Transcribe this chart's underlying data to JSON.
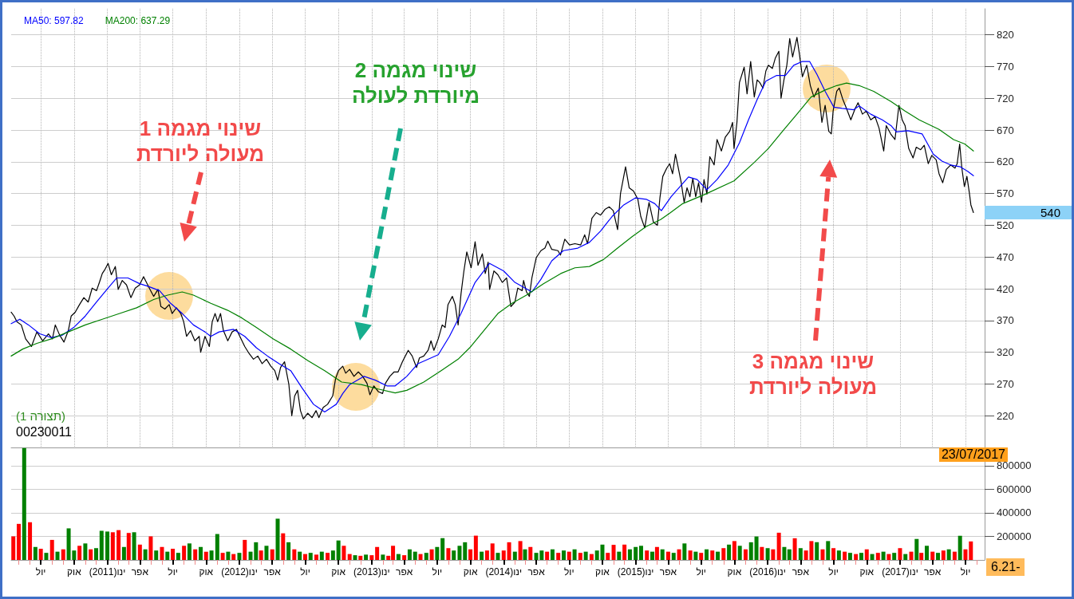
{
  "chart_data": [
    {
      "type": "line",
      "legend": "top left",
      "grid": true,
      "tick_labels": "y",
      "xlim": [
        "2010-04-10",
        "2017-08-23"
      ],
      "ylim": [
        170,
        861
      ],
      "yticks": [
        220,
        270,
        320,
        370,
        420,
        470,
        520,
        570,
        620,
        670,
        720,
        770,
        820
      ],
      "xticks": [
        {
          "value": "2010-07-01",
          "label": null
        },
        {
          "value": "2010-10-01",
          "label": null
        },
        {
          "value": "2011-01-01",
          "label": null
        },
        {
          "value": "2011-04-01",
          "label": null
        },
        {
          "value": "2011-07-01",
          "label": null
        },
        {
          "value": "2011-10-01",
          "label": null
        },
        {
          "value": "2012-01-01",
          "label": null
        },
        {
          "value": "2012-04-01",
          "label": null
        },
        {
          "value": "2012-07-01",
          "label": null
        },
        {
          "value": "2012-10-01",
          "label": null
        },
        {
          "value": "2013-01-01",
          "label": null
        },
        {
          "value": "2013-04-01",
          "label": null
        },
        {
          "value": "2013-07-01",
          "label": null
        },
        {
          "value": "2013-10-01",
          "label": null
        },
        {
          "value": "2014-01-01",
          "label": null
        },
        {
          "value": "2014-04-01",
          "label": null
        },
        {
          "value": "2014-07-01",
          "label": null
        },
        {
          "value": "2014-10-01",
          "label": null
        },
        {
          "value": "2015-01-01",
          "label": null
        },
        {
          "value": "2015-04-01",
          "label": null
        },
        {
          "value": "2015-07-01",
          "label": null
        },
        {
          "value": "2015-10-01",
          "label": null
        },
        {
          "value": "2016-01-01",
          "label": null
        },
        {
          "value": "2016-04-01",
          "label": null
        },
        {
          "value": "2016-07-01",
          "label": null
        },
        {
          "value": "2016-10-01",
          "label": null
        },
        {
          "value": "2017-01-01",
          "label": null
        },
        {
          "value": "2017-04-01",
          "label": null
        },
        {
          "value": "2017-07-01",
          "label": null
        }
      ],
      "series": [
        {
          "color": "#000000",
          "x": [
            "2010-04-10",
            "2010-04-18",
            "2010-04-26",
            "2010-05-08",
            "2010-05-20",
            "2010-06-05",
            "2010-06-20",
            "2010-07-06",
            "2010-07-22",
            "2010-08-02",
            "2010-08-10",
            "2010-08-22",
            "2010-09-03",
            "2010-09-15",
            "2010-09-23",
            "2010-10-04",
            "2010-10-16",
            "2010-10-28",
            "2010-11-09",
            "2010-11-20",
            "2010-12-02",
            "2010-12-10",
            "2010-12-18",
            "2010-12-26",
            "2011-01-03",
            "2011-01-12",
            "2011-01-23",
            "2011-01-31",
            "2011-02-11",
            "2011-02-23",
            "2011-03-07",
            "2011-03-19",
            "2011-03-31",
            "2011-04-11",
            "2011-04-19",
            "2011-04-27",
            "2011-05-09",
            "2011-05-21",
            "2011-05-29",
            "2011-06-09",
            "2011-06-21",
            "2011-06-29",
            "2011-07-11",
            "2011-07-23",
            "2011-07-31",
            "2011-08-08",
            "2011-08-19",
            "2011-08-31",
            "2011-09-12",
            "2011-09-16",
            "2011-09-28",
            "2011-10-10",
            "2011-10-18",
            "2011-10-26",
            "2011-11-02",
            "2011-11-10",
            "2011-11-18",
            "2011-11-30",
            "2011-12-12",
            "2011-12-24",
            "2012-01-04",
            "2012-01-16",
            "2012-01-28",
            "2012-02-09",
            "2012-02-21",
            "2012-03-04",
            "2012-03-16",
            "2012-03-28",
            "2012-04-08",
            "2012-04-16",
            "2012-04-24",
            "2012-05-05",
            "2012-05-17",
            "2012-05-25",
            "2012-06-02",
            "2012-06-10",
            "2012-06-18",
            "2012-06-26",
            "2012-07-08",
            "2012-07-20",
            "2012-07-31",
            "2012-08-08",
            "2012-08-20",
            "2012-09-01",
            "2012-09-15",
            "2012-09-23",
            "2012-10-01",
            "2012-10-13",
            "2012-10-21",
            "2012-11-01",
            "2012-11-13",
            "2012-11-25",
            "2012-12-07",
            "2012-12-19",
            "2012-12-27",
            "2013-01-07",
            "2013-01-19",
            "2013-01-31",
            "2013-02-08",
            "2013-02-20",
            "2013-03-04",
            "2013-03-15",
            "2013-03-27",
            "2013-04-12",
            "2013-04-23",
            "2013-05-05",
            "2013-05-13",
            "2013-05-25",
            "2013-06-06",
            "2013-06-14",
            "2013-06-22",
            "2013-07-04",
            "2013-07-15",
            "2013-07-23",
            "2013-07-31",
            "2013-08-12",
            "2013-08-20",
            "2013-08-28",
            "2013-09-05",
            "2013-09-13",
            "2013-09-21",
            "2013-10-03",
            "2013-10-14",
            "2013-10-22",
            "2013-11-03",
            "2013-11-11",
            "2013-11-19",
            "2013-11-23",
            "2013-12-05",
            "2013-12-16",
            "2013-12-28",
            "2014-01-09",
            "2014-01-21",
            "2014-02-01",
            "2014-02-09",
            "2014-02-21",
            "2014-02-25",
            "2014-03-05",
            "2014-03-13",
            "2014-03-20",
            "2014-04-01",
            "2014-04-14",
            "2014-04-25",
            "2014-05-03",
            "2014-05-14",
            "2014-05-31",
            "2014-06-07",
            "2014-06-19",
            "2014-07-02",
            "2014-07-17",
            "2014-08-02",
            "2014-08-13",
            "2014-08-21",
            "2014-09-02",
            "2014-09-14",
            "2014-09-26",
            "2014-10-08",
            "2014-10-20",
            "2014-10-31",
            "2014-11-12",
            "2014-11-20",
            "2014-12-04",
            "2014-12-14",
            "2014-12-26",
            "2015-01-07",
            "2015-01-15",
            "2015-01-26",
            "2015-02-07",
            "2015-02-19",
            "2015-03-02",
            "2015-03-09",
            "2015-03-17",
            "2015-03-28",
            "2015-04-05",
            "2015-04-13",
            "2015-04-21",
            "2015-04-29",
            "2015-05-07",
            "2015-05-15",
            "2015-05-23",
            "2015-05-31",
            "2015-06-08",
            "2015-06-16",
            "2015-06-24",
            "2015-07-02",
            "2015-07-09",
            "2015-07-17",
            "2015-07-25",
            "2015-08-06",
            "2015-08-14",
            "2015-08-26",
            "2015-09-06",
            "2015-09-18",
            "2015-09-26",
            "2015-09-30",
            "2015-10-08",
            "2015-10-15",
            "2015-10-28",
            "2015-11-05",
            "2015-11-15",
            "2015-11-25",
            "2015-12-03",
            "2015-12-10",
            "2015-12-19",
            "2015-12-27",
            "2016-01-03",
            "2016-01-14",
            "2016-01-22",
            "2016-02-01",
            "2016-02-07",
            "2016-02-15",
            "2016-02-23",
            "2016-03-02",
            "2016-03-10",
            "2016-03-22",
            "2016-03-29",
            "2016-04-06",
            "2016-04-18",
            "2016-04-28",
            "2016-05-08",
            "2016-05-20",
            "2016-05-30",
            "2016-06-08",
            "2016-06-18",
            "2016-06-25",
            "2016-06-30",
            "2016-07-10",
            "2016-07-17",
            "2016-07-27",
            "2016-08-06",
            "2016-08-18",
            "2016-08-30",
            "2016-09-07",
            "2016-09-19",
            "2016-09-30",
            "2016-10-12",
            "2016-10-24",
            "2016-11-04",
            "2016-11-17",
            "2016-11-24",
            "2016-12-06",
            "2016-12-18",
            "2016-12-29",
            "2017-01-07",
            "2017-01-15",
            "2017-01-25",
            "2017-02-06",
            "2017-02-15",
            "2017-02-27",
            "2017-03-09",
            "2017-03-20",
            "2017-03-30",
            "2017-04-11",
            "2017-04-19",
            "2017-04-29",
            "2017-05-09",
            "2017-05-21",
            "2017-06-02",
            "2017-06-08",
            "2017-06-15",
            "2017-06-21",
            "2017-06-28",
            "2017-07-05",
            "2017-07-12",
            "2017-07-16",
            "2017-07-23"
          ],
          "values": [
            383,
            377,
            368,
            363,
            341,
            329,
            352,
            338,
            349,
            341,
            363,
            347,
            336,
            354,
            377,
            383,
            395,
            406,
            399,
            421,
            417,
            430,
            444,
            451,
            460,
            442,
            455,
            419,
            433,
            426,
            406,
            421,
            426,
            439,
            430,
            421,
            408,
            419,
            392,
            388,
            395,
            381,
            390,
            381,
            368,
            345,
            354,
            338,
            345,
            320,
            345,
            329,
            368,
            381,
            368,
            381,
            354,
            338,
            352,
            356,
            343,
            329,
            318,
            309,
            314,
            302,
            309,
            298,
            291,
            276,
            296,
            305,
            269,
            220,
            251,
            260,
            228,
            215,
            224,
            217,
            228,
            217,
            233,
            238,
            251,
            278,
            291,
            298,
            287,
            293,
            282,
            289,
            282,
            271,
            253,
            267,
            258,
            255,
            271,
            282,
            289,
            289,
            305,
            323,
            314,
            296,
            311,
            314,
            323,
            338,
            323,
            341,
            363,
            359,
            395,
            408,
            395,
            363,
            412,
            448,
            478,
            453,
            494,
            457,
            475,
            444,
            462,
            419,
            448,
            442,
            430,
            437,
            392,
            399,
            421,
            417,
            433,
            415,
            408,
            437,
            469,
            480,
            484,
            495,
            482,
            480,
            473,
            498,
            489,
            491,
            489,
            505,
            491,
            531,
            540,
            536,
            545,
            549,
            543,
            513,
            570,
            612,
            579,
            574,
            561,
            534,
            516,
            556,
            525,
            520,
            563,
            597,
            610,
            617,
            601,
            632,
            610,
            587,
            556,
            579,
            565,
            594,
            565,
            587,
            556,
            592,
            569,
            628,
            615,
            655,
            637,
            659,
            668,
            682,
            641,
            682,
            745,
            769,
            727,
            778,
            722,
            749,
            745,
            736,
            763,
            772,
            767,
            783,
            794,
            720,
            749,
            772,
            814,
            785,
            816,
            789,
            754,
            772,
            740,
            722,
            736,
            682,
            709,
            668,
            664,
            700,
            731,
            736,
            718,
            704,
            686,
            704,
            713,
            695,
            700,
            686,
            691,
            673,
            637,
            677,
            664,
            655,
            709,
            686,
            677,
            641,
            626,
            643,
            639,
            646,
            617,
            630,
            623,
            601,
            587,
            608,
            615,
            610,
            617,
            648,
            610,
            581,
            597,
            570,
            552,
            540
          ]
        },
        {
          "name": "MA50: 597.82",
          "color": "#0000ff",
          "x": [
            "2010-04-10",
            "2010-05-04",
            "2010-05-28",
            "2010-06-28",
            "2010-07-30",
            "2010-08-30",
            "2010-09-30",
            "2010-11-01",
            "2010-12-02",
            "2011-01-03",
            "2011-01-27",
            "2011-02-27",
            "2011-03-31",
            "2011-04-23",
            "2011-05-25",
            "2011-06-25",
            "2011-07-27",
            "2011-08-27",
            "2011-09-28",
            "2011-10-14",
            "2011-11-06",
            "2011-12-16",
            "2012-01-16",
            "2012-02-17",
            "2012-03-19",
            "2012-04-20",
            "2012-05-22",
            "2012-06-22",
            "2012-07-24",
            "2012-08-24",
            "2012-09-25",
            "2012-10-13",
            "2012-11-01",
            "2012-12-11",
            "2013-01-11",
            "2013-02-12",
            "2013-03-07",
            "2013-04-08",
            "2013-05-09",
            "2013-07-04",
            "2013-08-04",
            "2013-09-05",
            "2013-10-14",
            "2013-11-23",
            "2014-01-01",
            "2014-02-01",
            "2014-03-20",
            "2014-04-14",
            "2014-05-14",
            "2014-06-15",
            "2014-07-25",
            "2014-08-26",
            "2014-09-26",
            "2014-10-28",
            "2014-11-29",
            "2014-12-31",
            "2015-01-30",
            "2015-02-23",
            "2015-03-13",
            "2015-04-09",
            "2015-05-27",
            "2015-06-20",
            "2015-07-17",
            "2015-08-14",
            "2015-09-14",
            "2015-10-15",
            "2015-11-09",
            "2015-12-03",
            "2015-12-27",
            "2016-01-26",
            "2016-02-19",
            "2016-03-13",
            "2016-04-06",
            "2016-04-26",
            "2016-05-16",
            "2016-06-08",
            "2016-07-02",
            "2016-07-25",
            "2016-08-26",
            "2016-09-10",
            "2016-10-12",
            "2016-11-13",
            "2016-12-07",
            "2016-12-22",
            "2017-01-23",
            "2017-03-03",
            "2017-04-03",
            "2017-04-27",
            "2017-05-21",
            "2017-06-17",
            "2017-07-07",
            "2017-07-23"
          ],
          "values": [
            365,
            372,
            363,
            349,
            343,
            347,
            359,
            377,
            399,
            421,
            437,
            437,
            428,
            424,
            417,
            397,
            381,
            363,
            352,
            345,
            352,
            356,
            345,
            327,
            314,
            302,
            291,
            264,
            238,
            226,
            238,
            255,
            269,
            282,
            276,
            267,
            267,
            282,
            302,
            316,
            345,
            381,
            430,
            460,
            448,
            430,
            415,
            435,
            464,
            480,
            484,
            493,
            511,
            534,
            552,
            563,
            561,
            554,
            543,
            565,
            596,
            592,
            576,
            592,
            615,
            650,
            686,
            718,
            747,
            756,
            756,
            772,
            778,
            778,
            758,
            731,
            706,
            704,
            702,
            708,
            695,
            686,
            677,
            667,
            669,
            664,
            632,
            621,
            615,
            612,
            605,
            598
          ]
        },
        {
          "name": "MA200: 637.29",
          "color": "#008000",
          "x": [
            "2010-04-10",
            "2010-05-12",
            "2010-06-20",
            "2010-07-30",
            "2010-09-15",
            "2010-11-01",
            "2010-12-18",
            "2011-02-04",
            "2011-03-23",
            "2011-05-09",
            "2011-06-17",
            "2011-07-27",
            "2011-08-27",
            "2011-10-14",
            "2011-11-30",
            "2012-01-08",
            "2012-02-17",
            "2012-04-04",
            "2012-05-22",
            "2012-07-08",
            "2012-08-24",
            "2012-10-10",
            "2012-12-03",
            "2013-01-19",
            "2013-03-07",
            "2013-04-08",
            "2013-05-25",
            "2013-07-12",
            "2013-08-28",
            "2013-09-29",
            "2013-11-07",
            "2013-12-16",
            "2014-01-24",
            "2014-03-05",
            "2014-04-21",
            "2014-06-08",
            "2014-07-17",
            "2014-08-26",
            "2014-10-04",
            "2014-11-12",
            "2014-12-22",
            "2015-01-30",
            "2015-03-11",
            "2015-04-03",
            "2015-05-11",
            "2015-07-13",
            "2015-09-30",
            "2015-11-25",
            "2016-01-03",
            "2016-02-11",
            "2016-03-22",
            "2016-04-30",
            "2016-06-08",
            "2016-07-10",
            "2016-08-06",
            "2016-09-10",
            "2016-10-20",
            "2016-12-07",
            "2017-01-15",
            "2017-02-23",
            "2017-04-19",
            "2017-05-29",
            "2017-06-29",
            "2017-07-23"
          ],
          "values": [
            314,
            325,
            334,
            341,
            352,
            363,
            372,
            381,
            390,
            403,
            410,
            415,
            410,
            397,
            386,
            374,
            359,
            341,
            325,
            307,
            291,
            273,
            269,
            262,
            256,
            260,
            273,
            291,
            309,
            327,
            354,
            381,
            397,
            410,
            428,
            444,
            453,
            455,
            466,
            484,
            502,
            518,
            529,
            538,
            554,
            569,
            590,
            619,
            641,
            668,
            695,
            722,
            733,
            740,
            744,
            740,
            731,
            715,
            700,
            686,
            671,
            655,
            648,
            637
          ]
        }
      ],
      "annotations": [
        "שינוי מגמה 1\nמעולה ליורדת",
        "שינוי מגמה 2\nמיורדת לעולה",
        "שינוי מגמה 3\nמעולה ליורדת",
        "(תצורה 1)",
        "00230011",
        "540",
        "23/07/2017"
      ]
    },
    {
      "type": "bar",
      "grid": "y",
      "xlim": [
        "2010-04-10",
        "2017-08-23"
      ],
      "ylim": [
        0,
        955000
      ],
      "yticks": [
        200000,
        400000,
        600000,
        800000
      ],
      "xticks": [
        {
          "value": "2010-05-01",
          "label": null
        },
        {
          "value": "2010-06-01",
          "label": null
        },
        {
          "value": "2010-07-01",
          "label": "יול"
        },
        {
          "value": "2010-08-01",
          "label": null
        },
        {
          "value": "2010-09-01",
          "label": null
        },
        {
          "value": "2010-10-01",
          "label": "אוק"
        },
        {
          "value": "2010-11-01",
          "label": null
        },
        {
          "value": "2010-12-01",
          "label": null
        },
        {
          "value": "2011-01-01",
          "label": "(2011)ינו"
        },
        {
          "value": "2011-02-01",
          "label": null
        },
        {
          "value": "2011-03-01",
          "label": null
        },
        {
          "value": "2011-04-01",
          "label": "אפר"
        },
        {
          "value": "2011-05-01",
          "label": null
        },
        {
          "value": "2011-06-01",
          "label": null
        },
        {
          "value": "2011-07-01",
          "label": "יול"
        },
        {
          "value": "2011-08-01",
          "label": null
        },
        {
          "value": "2011-09-01",
          "label": null
        },
        {
          "value": "2011-10-01",
          "label": "אוק"
        },
        {
          "value": "2011-11-01",
          "label": null
        },
        {
          "value": "2011-12-01",
          "label": null
        },
        {
          "value": "2012-01-01",
          "label": "(2012)ינו"
        },
        {
          "value": "2012-02-01",
          "label": null
        },
        {
          "value": "2012-03-01",
          "label": null
        },
        {
          "value": "2012-04-01",
          "label": "אפר"
        },
        {
          "value": "2012-05-01",
          "label": null
        },
        {
          "value": "2012-06-01",
          "label": null
        },
        {
          "value": "2012-07-01",
          "label": "יול"
        },
        {
          "value": "2012-08-01",
          "label": null
        },
        {
          "value": "2012-09-01",
          "label": null
        },
        {
          "value": "2012-10-01",
          "label": "אוק"
        },
        {
          "value": "2012-11-01",
          "label": null
        },
        {
          "value": "2012-12-01",
          "label": null
        },
        {
          "value": "2013-01-01",
          "label": "(2013)ינו"
        },
        {
          "value": "2013-02-01",
          "label": null
        },
        {
          "value": "2013-03-01",
          "label": null
        },
        {
          "value": "2013-04-01",
          "label": "אפר"
        },
        {
          "value": "2013-05-01",
          "label": null
        },
        {
          "value": "2013-06-01",
          "label": null
        },
        {
          "value": "2013-07-01",
          "label": "יול"
        },
        {
          "value": "2013-08-01",
          "label": null
        },
        {
          "value": "2013-09-01",
          "label": null
        },
        {
          "value": "2013-10-01",
          "label": "אוק"
        },
        {
          "value": "2013-11-01",
          "label": null
        },
        {
          "value": "2013-12-01",
          "label": null
        },
        {
          "value": "2014-01-01",
          "label": "(2014)ינו"
        },
        {
          "value": "2014-02-01",
          "label": null
        },
        {
          "value": "2014-03-01",
          "label": null
        },
        {
          "value": "2014-04-01",
          "label": "אפר"
        },
        {
          "value": "2014-05-01",
          "label": null
        },
        {
          "value": "2014-06-01",
          "label": null
        },
        {
          "value": "2014-07-01",
          "label": "יול"
        },
        {
          "value": "2014-08-01",
          "label": null
        },
        {
          "value": "2014-09-01",
          "label": null
        },
        {
          "value": "2014-10-01",
          "label": "אוק"
        },
        {
          "value": "2014-11-01",
          "label": null
        },
        {
          "value": "2014-12-01",
          "label": null
        },
        {
          "value": "2015-01-01",
          "label": "(2015)ינו"
        },
        {
          "value": "2015-02-01",
          "label": null
        },
        {
          "value": "2015-03-01",
          "label": null
        },
        {
          "value": "2015-04-01",
          "label": "אפר"
        },
        {
          "value": "2015-05-01",
          "label": null
        },
        {
          "value": "2015-06-01",
          "label": null
        },
        {
          "value": "2015-07-01",
          "label": "יול"
        },
        {
          "value": "2015-08-01",
          "label": null
        },
        {
          "value": "2015-09-01",
          "label": null
        },
        {
          "value": "2015-10-01",
          "label": "אוק"
        },
        {
          "value": "2015-11-01",
          "label": null
        },
        {
          "value": "2015-12-01",
          "label": null
        },
        {
          "value": "2016-01-01",
          "label": "(2016)ינו"
        },
        {
          "value": "2016-02-01",
          "label": null
        },
        {
          "value": "2016-03-01",
          "label": null
        },
        {
          "value": "2016-04-01",
          "label": "אפר"
        },
        {
          "value": "2016-05-01",
          "label": null
        },
        {
          "value": "2016-06-01",
          "label": null
        },
        {
          "value": "2016-07-01",
          "label": "יול"
        },
        {
          "value": "2016-08-01",
          "label": null
        },
        {
          "value": "2016-09-01",
          "label": null
        },
        {
          "value": "2016-10-01",
          "label": "אוק"
        },
        {
          "value": "2016-11-01",
          "label": null
        },
        {
          "value": "2016-12-01",
          "label": null
        },
        {
          "value": "2017-01-01",
          "label": "(2017)ינו"
        },
        {
          "value": "2017-02-01",
          "label": null
        },
        {
          "value": "2017-03-01",
          "label": null
        },
        {
          "value": "2017-04-01",
          "label": "אפר"
        },
        {
          "value": "2017-05-01",
          "label": null
        },
        {
          "value": "2017-06-01",
          "label": null
        },
        {
          "value": "2017-07-01",
          "label": "יול"
        },
        {
          "value": "2017-08-01",
          "label": null
        }
      ],
      "x": [
        "2010-04-16",
        "2010-05-01",
        "2010-05-16",
        "2010-06-01",
        "2010-06-16",
        "2010-07-01",
        "2010-07-16",
        "2010-08-01",
        "2010-08-16",
        "2010-09-01",
        "2010-09-16",
        "2010-10-01",
        "2010-10-16",
        "2010-11-01",
        "2010-11-16",
        "2010-12-01",
        "2010-12-16",
        "2011-01-01",
        "2011-01-16",
        "2011-02-01",
        "2011-02-16",
        "2011-03-01",
        "2011-03-16",
        "2011-04-01",
        "2011-04-16",
        "2011-05-01",
        "2011-05-16",
        "2011-06-01",
        "2011-06-16",
        "2011-07-01",
        "2011-07-16",
        "2011-08-01",
        "2011-08-16",
        "2011-09-01",
        "2011-09-16",
        "2011-10-01",
        "2011-10-16",
        "2011-11-01",
        "2011-11-16",
        "2011-12-01",
        "2011-12-16",
        "2012-01-01",
        "2012-01-16",
        "2012-02-01",
        "2012-02-16",
        "2012-03-01",
        "2012-03-16",
        "2012-04-01",
        "2012-04-16",
        "2012-05-01",
        "2012-05-16",
        "2012-06-01",
        "2012-06-16",
        "2012-07-01",
        "2012-07-16",
        "2012-08-01",
        "2012-08-16",
        "2012-09-01",
        "2012-09-16",
        "2012-10-01",
        "2012-10-16",
        "2012-11-01",
        "2012-11-16",
        "2012-12-01",
        "2012-12-16",
        "2013-01-01",
        "2013-01-16",
        "2013-02-01",
        "2013-02-16",
        "2013-03-01",
        "2013-03-16",
        "2013-04-01",
        "2013-04-16",
        "2013-05-01",
        "2013-05-16",
        "2013-06-01",
        "2013-06-16",
        "2013-07-01",
        "2013-07-16",
        "2013-08-01",
        "2013-08-16",
        "2013-09-01",
        "2013-09-16",
        "2013-10-01",
        "2013-10-16",
        "2013-11-01",
        "2013-11-16",
        "2013-12-01",
        "2013-12-16",
        "2014-01-01",
        "2014-01-16",
        "2014-02-01",
        "2014-02-16",
        "2014-03-01",
        "2014-03-16",
        "2014-04-01",
        "2014-04-16",
        "2014-05-01",
        "2014-05-16",
        "2014-06-01",
        "2014-06-16",
        "2014-07-01",
        "2014-07-16",
        "2014-08-01",
        "2014-08-16",
        "2014-09-01",
        "2014-09-16",
        "2014-10-01",
        "2014-10-16",
        "2014-11-01",
        "2014-11-16",
        "2014-12-01",
        "2014-12-16",
        "2015-01-01",
        "2015-01-16",
        "2015-02-01",
        "2015-02-16",
        "2015-03-01",
        "2015-03-16",
        "2015-04-01",
        "2015-04-16",
        "2015-05-01",
        "2015-05-16",
        "2015-06-01",
        "2015-06-16",
        "2015-07-01",
        "2015-07-16",
        "2015-08-01",
        "2015-08-16",
        "2015-09-01",
        "2015-09-16",
        "2015-10-01",
        "2015-10-16",
        "2015-11-01",
        "2015-11-16",
        "2015-12-01",
        "2015-12-16",
        "2016-01-01",
        "2016-01-16",
        "2016-02-01",
        "2016-02-16",
        "2016-03-01",
        "2016-03-16",
        "2016-04-01",
        "2016-04-16",
        "2016-05-01",
        "2016-05-16",
        "2016-06-01",
        "2016-06-16",
        "2016-07-01",
        "2016-07-16",
        "2016-08-01",
        "2016-08-16",
        "2016-09-01",
        "2016-09-16",
        "2016-10-01",
        "2016-10-16",
        "2016-11-01",
        "2016-11-16",
        "2016-12-01",
        "2016-12-16",
        "2017-01-01",
        "2017-01-16",
        "2017-02-01",
        "2017-02-16",
        "2017-03-01",
        "2017-03-16",
        "2017-04-01",
        "2017-04-16",
        "2017-05-01",
        "2017-05-16",
        "2017-06-01",
        "2017-06-16",
        "2017-07-01",
        "2017-07-16"
      ],
      "values": [
        200000,
        306000,
        950000,
        320000,
        110000,
        95000,
        60000,
        170000,
        70000,
        90000,
        268000,
        80000,
        120000,
        140000,
        90000,
        100000,
        247000,
        241000,
        235000,
        253000,
        110000,
        229000,
        235000,
        130000,
        90000,
        200000,
        80000,
        110000,
        70000,
        95000,
        60000,
        120000,
        140000,
        90000,
        110000,
        70000,
        80000,
        220000,
        60000,
        70000,
        50000,
        60000,
        170000,
        70000,
        150000,
        80000,
        120000,
        90000,
        350000,
        226000,
        150000,
        90000,
        70000,
        50000,
        60000,
        45000,
        70000,
        60000,
        80000,
        165000,
        120000,
        50000,
        40000,
        35000,
        45000,
        40000,
        110000,
        45000,
        35000,
        120000,
        50000,
        40000,
        90000,
        70000,
        50000,
        60000,
        90000,
        110000,
        185000,
        100000,
        80000,
        120000,
        150000,
        90000,
        206000,
        70000,
        80000,
        140000,
        60000,
        80000,
        150000,
        70000,
        160000,
        90000,
        110000,
        60000,
        80000,
        70000,
        90000,
        60000,
        80000,
        70000,
        90000,
        60000,
        70000,
        50000,
        80000,
        130000,
        60000,
        128000,
        70000,
        130000,
        90000,
        110000,
        120000,
        80000,
        70000,
        110000,
        90000,
        70000,
        60000,
        90000,
        140000,
        80000,
        70000,
        60000,
        90000,
        80000,
        70000,
        100000,
        130000,
        160000,
        120000,
        90000,
        150000,
        199000,
        110000,
        100000,
        90000,
        231000,
        110000,
        90000,
        184000,
        100000,
        80000,
        160000,
        150000,
        90000,
        160000,
        100000,
        80000,
        70000,
        60000,
        50000,
        60000,
        90000,
        50000,
        60000,
        70000,
        50000,
        60000,
        100000,
        50000,
        70000,
        178000,
        60000,
        120000,
        70000,
        60000,
        80000,
        90000,
        70000,
        205000,
        90000,
        157000
      ],
      "colors": [
        "#ff0000",
        "#ff0000",
        "#008000",
        "#ff0000",
        "#008000",
        "#ff0000",
        "#008000",
        "#ff0000",
        "#008000",
        "#ff0000",
        "#008000",
        "#008000",
        "#ff0000",
        "#008000",
        "#ff0000",
        "#008000",
        "#008000",
        "#008000",
        "#ff0000",
        "#ff0000",
        "#008000",
        "#ff0000",
        "#008000",
        "#ff0000",
        "#008000",
        "#ff0000",
        "#008000",
        "#ff0000",
        "#008000",
        "#ff0000",
        "#008000",
        "#ff0000",
        "#008000",
        "#ff0000",
        "#008000",
        "#ff0000",
        "#008000",
        "#008000",
        "#ff0000",
        "#008000",
        "#ff0000",
        "#008000",
        "#ff0000",
        "#008000",
        "#008000",
        "#ff0000",
        "#008000",
        "#ff0000",
        "#008000",
        "#ff0000",
        "#008000",
        "#ff0000",
        "#008000",
        "#ff0000",
        "#008000",
        "#ff0000",
        "#008000",
        "#ff0000",
        "#008000",
        "#008000",
        "#ff0000",
        "#ff0000",
        "#008000",
        "#ff0000",
        "#008000",
        "#ff0000",
        "#ff0000",
        "#008000",
        "#ff0000",
        "#ff0000",
        "#008000",
        "#ff0000",
        "#008000",
        "#008000",
        "#ff0000",
        "#008000",
        "#ff0000",
        "#008000",
        "#008000",
        "#ff0000",
        "#008000",
        "#008000",
        "#008000",
        "#ff0000",
        "#ff0000",
        "#008000",
        "#ff0000",
        "#ff0000",
        "#008000",
        "#ff0000",
        "#ff0000",
        "#008000",
        "#ff0000",
        "#008000",
        "#ff0000",
        "#008000",
        "#008000",
        "#ff0000",
        "#008000",
        "#ff0000",
        "#008000",
        "#ff0000",
        "#008000",
        "#ff0000",
        "#008000",
        "#ff0000",
        "#008000",
        "#008000",
        "#ff0000",
        "#ff0000",
        "#008000",
        "#ff0000",
        "#008000",
        "#008000",
        "#008000",
        "#ff0000",
        "#008000",
        "#ff0000",
        "#008000",
        "#ff0000",
        "#008000",
        "#ff0000",
        "#008000",
        "#ff0000",
        "#008000",
        "#ff0000",
        "#008000",
        "#ff0000",
        "#008000",
        "#ff0000",
        "#008000",
        "#ff0000",
        "#008000",
        "#ff0000",
        "#008000",
        "#008000",
        "#ff0000",
        "#008000",
        "#ff0000",
        "#ff0000",
        "#008000",
        "#008000",
        "#ff0000",
        "#008000",
        "#ff0000",
        "#ff0000",
        "#008000",
        "#ff0000",
        "#008000",
        "#ff0000",
        "#008000",
        "#ff0000",
        "#008000",
        "#ff0000",
        "#008000",
        "#ff0000",
        "#008000",
        "#ff0000",
        "#008000",
        "#ff0000",
        "#008000",
        "#ff0000",
        "#008000",
        "#ff0000",
        "#008000",
        "#ff0000",
        "#008000",
        "#ff0000",
        "#008000",
        "#ff0000",
        "#008000",
        "#ff0000",
        "#008000",
        "#ff0000",
        "#ff0000"
      ],
      "annotations": [
        "6.21-"
      ]
    }
  ]
}
